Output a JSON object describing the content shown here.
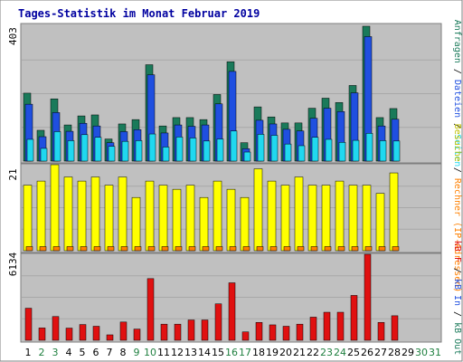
{
  "title": "Tages-Statistik im Monat Februar 2019",
  "colors": {
    "page_bg": "#ffffff",
    "frame": "#7f7f7f",
    "panel_bg": "#c0c0c0",
    "grid": "#a8a8a8",
    "title": "#0000a0",
    "hits": "#1a7a5a",
    "files": "#1f4fe0",
    "pages": "#20d8f0",
    "visits": "#ffff00",
    "sites": "#ff8000",
    "kbytes": "#e01010",
    "weekday": "#000000",
    "weekend": "#208040"
  },
  "chart_data": {
    "type": "bar",
    "title": "Tages-Statistik im Monat Februar 2019",
    "categories": [
      "1",
      "2",
      "3",
      "4",
      "5",
      "6",
      "7",
      "8",
      "9",
      "10",
      "11",
      "12",
      "13",
      "14",
      "15",
      "16",
      "17",
      "18",
      "19",
      "20",
      "21",
      "22",
      "23",
      "24",
      "25",
      "26",
      "27",
      "28",
      "29",
      "30",
      "31"
    ],
    "weekend_days": [
      "2",
      "3",
      "9",
      "10",
      "16",
      "17",
      "23",
      "24",
      "30",
      "31"
    ],
    "panels": [
      {
        "name": "requests",
        "max_label": "403",
        "ymax": 403,
        "right_labels": [
          {
            "text": "Anfragen",
            "color": "#1a7a5a"
          },
          {
            "text": " / ",
            "color": "#000000"
          },
          {
            "text": "Dateien",
            "color": "#1f4fe0"
          },
          {
            "text": " / ",
            "color": "#000000"
          },
          {
            "text": "Seiten",
            "color": "#20d8f0"
          }
        ],
        "series": [
          {
            "name": "Anfragen",
            "color": "#1a7a5a",
            "values": [
              203,
              92,
              186,
              108,
              135,
              138,
              66,
              111,
              124,
              288,
              105,
              130,
              130,
              124,
              199,
              297,
              55,
              162,
              132,
              114,
              114,
              158,
              188,
              175,
              226,
              403,
              130,
              157,
              0,
              0,
              0
            ]
          },
          {
            "name": "Dateien",
            "color": "#1f4fe0",
            "values": [
              170,
              73,
              145,
              89,
              113,
              105,
              55,
              88,
              94,
              258,
              84,
              108,
              104,
              108,
              171,
              268,
              37,
              122,
              111,
              95,
              90,
              128,
              158,
              148,
              204,
              372,
              105,
              125,
              0,
              0,
              0
            ]
          },
          {
            "name": "Seiten",
            "color": "#20d8f0",
            "values": [
              65,
              38,
              88,
              61,
              79,
              71,
              44,
              59,
              61,
              81,
              42,
              72,
              69,
              60,
              66,
              90,
              27,
              80,
              77,
              51,
              46,
              71,
              65,
              56,
              62,
              83,
              61,
              60,
              0,
              0,
              0
            ]
          }
        ]
      },
      {
        "name": "visits",
        "max_label": "21",
        "ymax": 21,
        "right_labels": [
          {
            "text": "Besuche",
            "color": "#c0c000"
          },
          {
            "text": " / ",
            "color": "#000000"
          },
          {
            "text": "Rechner (IP-Adressen)",
            "color": "#ff8000"
          }
        ],
        "series": [
          {
            "name": "Besuche",
            "color": "#ffff00",
            "values": [
              16,
              17,
              21,
              18,
              17,
              18,
              16,
              18,
              13,
              17,
              16,
              15,
              16,
              13,
              17,
              15,
              13,
              20,
              17,
              16,
              18,
              16,
              16,
              17,
              16,
              16,
              14,
              19,
              0,
              0,
              0
            ]
          },
          {
            "name": "Rechner",
            "color": "#ff8000",
            "values": [
              1,
              1,
              1,
              1,
              1,
              1,
              1,
              1,
              1,
              1,
              1,
              1,
              1,
              1,
              1,
              1,
              1,
              1,
              1,
              1,
              1,
              1,
              1,
              1,
              1,
              1,
              1,
              1,
              0,
              0,
              0
            ]
          }
        ]
      },
      {
        "name": "kbytes",
        "max_label": "6134",
        "ymax": 6134,
        "right_labels": [
          {
            "text": "kB F",
            "color": "#e01010"
          },
          {
            "text": " / ",
            "color": "#000000"
          },
          {
            "text": "kB In",
            "color": "#1f4fe0"
          },
          {
            "text": " / ",
            "color": "#000000"
          },
          {
            "text": "kB Out",
            "color": "#1a7a5a"
          }
        ],
        "series": [
          {
            "name": "kB F",
            "color": "#e01010",
            "values": [
              2288,
              880,
              1694,
              869,
              1124,
              1000,
              388,
              1302,
              800,
              4400,
              1150,
              1150,
              1450,
              1450,
              2600,
              4100,
              600,
              1275,
              1100,
              1000,
              1150,
              1650,
              2000,
              2000,
              3200,
              6134,
              1275,
              1750,
              0,
              0,
              0
            ]
          }
        ]
      }
    ]
  }
}
